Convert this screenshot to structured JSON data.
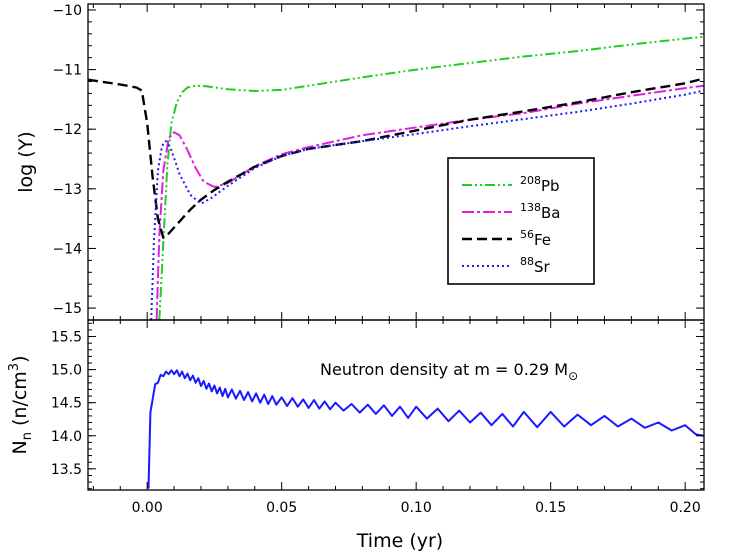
{
  "chart_data": [
    {
      "type": "line",
      "panel": "top",
      "ylabel": "log (Y)",
      "xlim": [
        -0.022,
        0.207
      ],
      "ylim": [
        -15.2,
        -9.9
      ],
      "yticks": [
        -15,
        -14,
        -13,
        -12,
        -11,
        -10
      ],
      "ytick_labels": [
        "−15",
        "−14",
        "−13",
        "−12",
        "−11",
        "−10"
      ],
      "legend_position": "center-right",
      "series": [
        {
          "name": "Pb",
          "mass_number": "208",
          "color": "#22cc22",
          "style": "dash-dot-dot",
          "x": [
            0.0045,
            0.006,
            0.0075,
            0.009,
            0.011,
            0.013,
            0.015,
            0.018,
            0.022,
            0.03,
            0.04,
            0.05,
            0.06,
            0.08,
            0.1,
            0.12,
            0.14,
            0.16,
            0.18,
            0.2,
            0.207
          ],
          "y": [
            -15.2,
            -13.9,
            -12.6,
            -11.9,
            -11.55,
            -11.38,
            -11.3,
            -11.27,
            -11.28,
            -11.33,
            -11.36,
            -11.34,
            -11.27,
            -11.13,
            -11.0,
            -10.89,
            -10.78,
            -10.69,
            -10.58,
            -10.48,
            -10.45
          ]
        },
        {
          "name": "Ba",
          "mass_number": "138",
          "color": "#e020e0",
          "style": "dash-dot",
          "x": [
            0.0035,
            0.0045,
            0.006,
            0.008,
            0.01,
            0.012,
            0.015,
            0.018,
            0.021,
            0.025,
            0.03,
            0.04,
            0.05,
            0.06,
            0.08,
            0.1,
            0.12,
            0.14,
            0.16,
            0.18,
            0.2,
            0.207
          ],
          "y": [
            -15.2,
            -13.8,
            -12.7,
            -12.15,
            -12.05,
            -12.1,
            -12.35,
            -12.65,
            -12.88,
            -12.97,
            -12.9,
            -12.62,
            -12.42,
            -12.3,
            -12.1,
            -11.97,
            -11.84,
            -11.73,
            -11.57,
            -11.44,
            -11.31,
            -11.27
          ]
        },
        {
          "name": "Fe",
          "mass_number": "56",
          "color": "#000000",
          "style": "dashed",
          "x": [
            -0.022,
            -0.01,
            -0.004,
            -0.002,
            0.0,
            0.002,
            0.004,
            0.006,
            0.008,
            0.012,
            0.016,
            0.02,
            0.025,
            0.03,
            0.04,
            0.05,
            0.06,
            0.08,
            0.1,
            0.12,
            0.14,
            0.16,
            0.18,
            0.2,
            0.207
          ],
          "y": [
            -11.17,
            -11.25,
            -11.3,
            -11.35,
            -11.9,
            -12.8,
            -13.5,
            -13.82,
            -13.75,
            -13.55,
            -13.35,
            -13.18,
            -13.02,
            -12.88,
            -12.63,
            -12.45,
            -12.33,
            -12.2,
            -12.02,
            -11.84,
            -11.7,
            -11.55,
            -11.38,
            -11.23,
            -11.15
          ]
        },
        {
          "name": "Sr",
          "mass_number": "88",
          "color": "#1a1aff",
          "style": "dotted",
          "x": [
            0.0015,
            0.0025,
            0.004,
            0.0055,
            0.007,
            0.009,
            0.012,
            0.016,
            0.02,
            0.024,
            0.03,
            0.04,
            0.05,
            0.06,
            0.08,
            0.1,
            0.12,
            0.14,
            0.16,
            0.18,
            0.2,
            0.207
          ],
          "y": [
            -15.2,
            -13.9,
            -12.7,
            -12.28,
            -12.2,
            -12.35,
            -12.75,
            -13.1,
            -13.25,
            -13.15,
            -12.95,
            -12.65,
            -12.45,
            -12.33,
            -12.2,
            -12.08,
            -11.95,
            -11.83,
            -11.71,
            -11.57,
            -11.42,
            -11.35
          ]
        }
      ]
    },
    {
      "type": "line",
      "panel": "bottom",
      "xlabel": "Time (yr)",
      "ylabel_main": "N",
      "ylabel_sub": "n",
      "ylabel_tail": " (n/cm",
      "ylabel_sup": "3",
      "ylabel_end": ")",
      "xlim": [
        -0.022,
        0.207
      ],
      "ylim": [
        13.18,
        15.75
      ],
      "xticks": [
        0.0,
        0.05,
        0.1,
        0.15,
        0.2
      ],
      "xtick_labels": [
        "0.00",
        "0.05",
        "0.10",
        "0.15",
        "0.20"
      ],
      "yticks": [
        13.5,
        14.0,
        14.5,
        15.0,
        15.5
      ],
      "ytick_labels": [
        "13.5",
        "14.0",
        "14.5",
        "15.0",
        "15.5"
      ],
      "annotation_main": "Neutron density at m = 0.29 M",
      "annotation_sub": "⊙",
      "series": [
        {
          "name": "",
          "color": "#1a1aff",
          "style": "solid",
          "x": [
            0.0005,
            0.0012,
            0.002,
            0.003,
            0.004,
            0.005,
            0.006,
            0.007,
            0.008,
            0.009,
            0.01,
            0.011,
            0.012,
            0.013,
            0.014,
            0.015,
            0.016,
            0.017,
            0.018,
            0.019,
            0.02,
            0.021,
            0.022,
            0.023,
            0.024,
            0.025,
            0.026,
            0.027,
            0.028,
            0.029,
            0.03,
            0.0315,
            0.033,
            0.0345,
            0.036,
            0.0375,
            0.039,
            0.0405,
            0.042,
            0.0435,
            0.045,
            0.0465,
            0.048,
            0.05,
            0.052,
            0.054,
            0.056,
            0.058,
            0.06,
            0.062,
            0.064,
            0.066,
            0.068,
            0.07,
            0.073,
            0.076,
            0.079,
            0.082,
            0.085,
            0.088,
            0.091,
            0.094,
            0.097,
            0.1,
            0.104,
            0.108,
            0.112,
            0.116,
            0.12,
            0.124,
            0.128,
            0.132,
            0.136,
            0.14,
            0.145,
            0.15,
            0.155,
            0.16,
            0.165,
            0.17,
            0.175,
            0.18,
            0.185,
            0.19,
            0.195,
            0.2,
            0.204,
            0.207
          ],
          "y": [
            13.2,
            14.35,
            14.55,
            14.78,
            14.8,
            14.92,
            14.9,
            14.97,
            14.93,
            14.99,
            14.93,
            14.99,
            14.9,
            14.97,
            14.87,
            14.94,
            14.84,
            14.91,
            14.8,
            14.87,
            14.75,
            14.83,
            14.71,
            14.79,
            14.67,
            14.76,
            14.64,
            14.73,
            14.6,
            14.71,
            14.58,
            14.7,
            14.56,
            14.68,
            14.54,
            14.66,
            14.52,
            14.64,
            14.5,
            14.62,
            14.48,
            14.6,
            14.47,
            14.58,
            14.45,
            14.57,
            14.44,
            14.55,
            14.42,
            14.54,
            14.41,
            14.52,
            14.4,
            14.5,
            14.38,
            14.48,
            14.35,
            14.47,
            14.33,
            14.46,
            14.3,
            14.44,
            14.27,
            14.44,
            14.26,
            14.41,
            14.22,
            14.38,
            14.2,
            14.35,
            14.16,
            14.33,
            14.14,
            14.36,
            14.13,
            14.36,
            14.14,
            14.32,
            14.16,
            14.3,
            14.14,
            14.26,
            14.12,
            14.2,
            14.08,
            14.16,
            14.02,
            14.0
          ]
        }
      ]
    }
  ]
}
